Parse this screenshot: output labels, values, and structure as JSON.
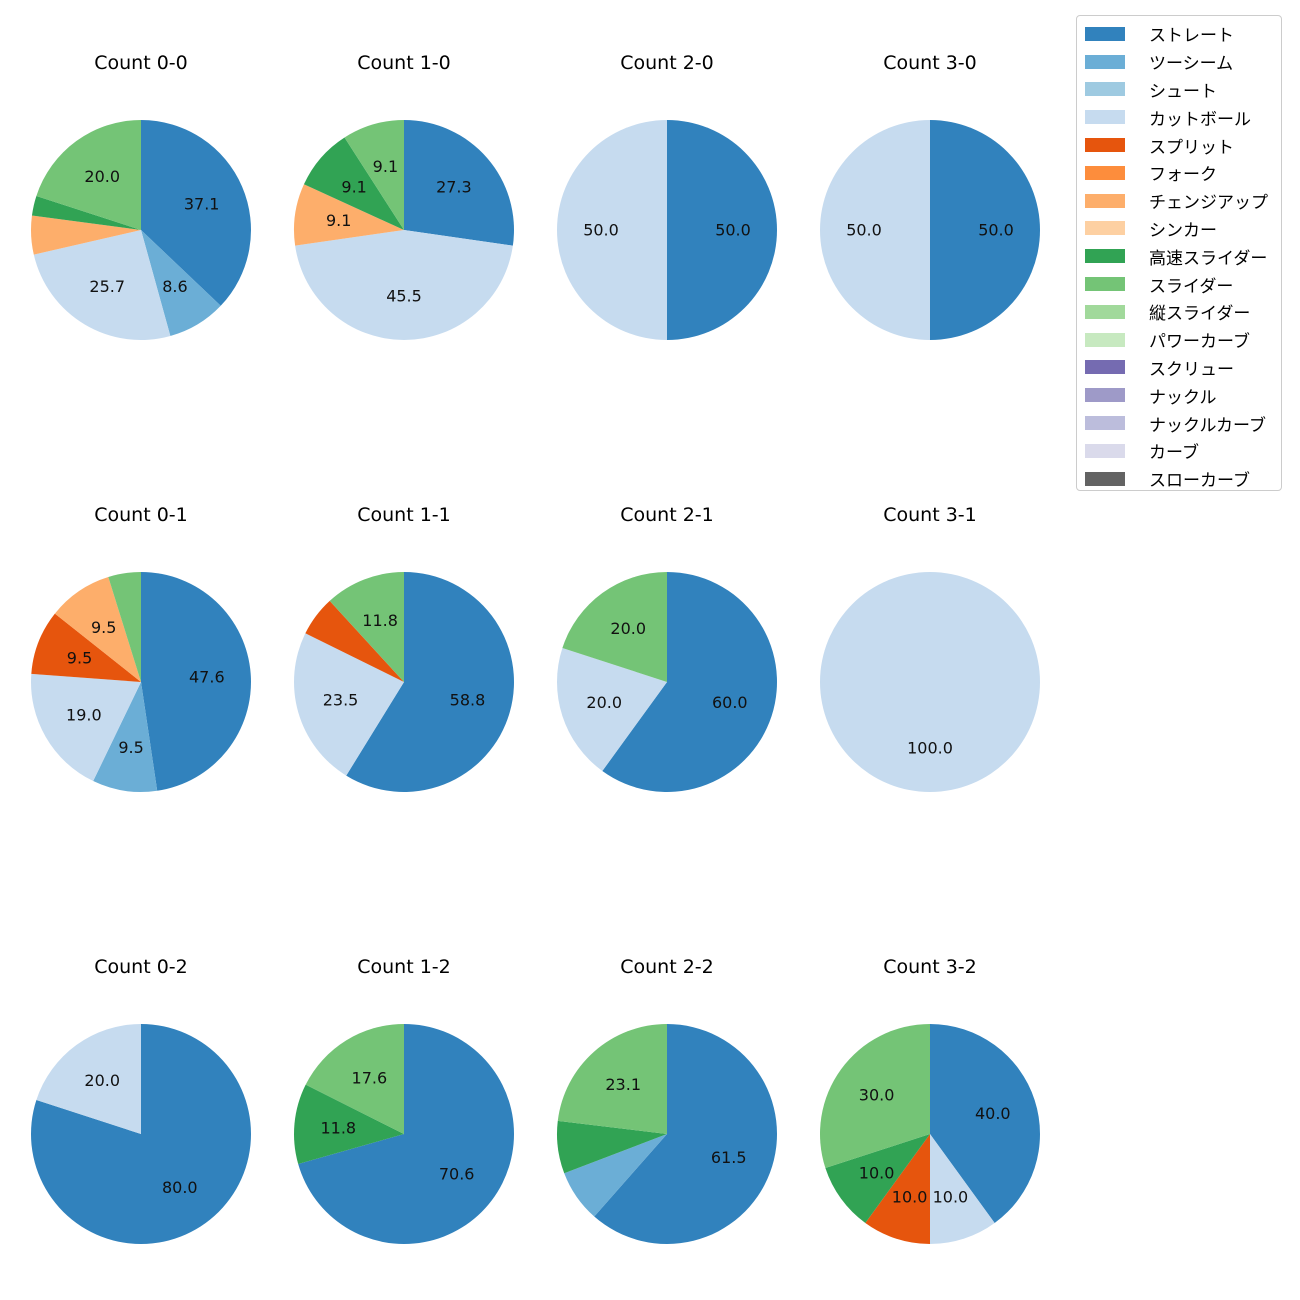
{
  "chart_data": {
    "type": "pie",
    "legend": {
      "placement": "top-right",
      "entries": [
        {
          "name": "ストレート",
          "color": "#3182bd"
        },
        {
          "name": "ツーシーム",
          "color": "#6baed6"
        },
        {
          "name": "シュート",
          "color": "#9ecae1"
        },
        {
          "name": "カットボール",
          "color": "#c6dbef"
        },
        {
          "name": "スプリット",
          "color": "#e6550d"
        },
        {
          "name": "フォーク",
          "color": "#fd8d3c"
        },
        {
          "name": "チェンジアップ",
          "color": "#fdae6b"
        },
        {
          "name": "シンカー",
          "color": "#fdd0a2"
        },
        {
          "name": "高速スライダー",
          "color": "#31a354"
        },
        {
          "name": "スライダー",
          "color": "#74c476"
        },
        {
          "name": "縦スライダー",
          "color": "#a1d99b"
        },
        {
          "name": "パワーカーブ",
          "color": "#c7e9c0"
        },
        {
          "name": "スクリュー",
          "color": "#756bb1"
        },
        {
          "name": "ナックル",
          "color": "#9e9ac8"
        },
        {
          "name": "ナックルカーブ",
          "color": "#bcbddc"
        },
        {
          "name": "カーブ",
          "color": "#dadaeb"
        },
        {
          "name": "スローカーブ",
          "color": "#636363"
        }
      ]
    },
    "pies": [
      {
        "title": "Count 0-0",
        "slices": [
          {
            "pitch": "ストレート",
            "value": 37.1,
            "label": "37.1"
          },
          {
            "pitch": "ツーシーム",
            "value": 8.6,
            "label": "8.6"
          },
          {
            "pitch": "カットボール",
            "value": 25.7,
            "label": "25.7"
          },
          {
            "pitch": "チェンジアップ",
            "value": 5.7,
            "label": ""
          },
          {
            "pitch": "高速スライダー",
            "value": 2.9,
            "label": ""
          },
          {
            "pitch": "スライダー",
            "value": 20.0,
            "label": "20.0"
          }
        ]
      },
      {
        "title": "Count 1-0",
        "slices": [
          {
            "pitch": "ストレート",
            "value": 27.3,
            "label": "27.3"
          },
          {
            "pitch": "カットボール",
            "value": 45.5,
            "label": "45.5"
          },
          {
            "pitch": "チェンジアップ",
            "value": 9.1,
            "label": "9.1"
          },
          {
            "pitch": "高速スライダー",
            "value": 9.1,
            "label": "9.1"
          },
          {
            "pitch": "スライダー",
            "value": 9.1,
            "label": "9.1"
          }
        ]
      },
      {
        "title": "Count 2-0",
        "slices": [
          {
            "pitch": "ストレート",
            "value": 50.0,
            "label": "50.0"
          },
          {
            "pitch": "カットボール",
            "value": 50.0,
            "label": "50.0"
          }
        ]
      },
      {
        "title": "Count 3-0",
        "slices": [
          {
            "pitch": "ストレート",
            "value": 50.0,
            "label": "50.0"
          },
          {
            "pitch": "カットボール",
            "value": 50.0,
            "label": "50.0"
          }
        ]
      },
      {
        "title": "Count 0-1",
        "slices": [
          {
            "pitch": "ストレート",
            "value": 47.6,
            "label": "47.6"
          },
          {
            "pitch": "ツーシーム",
            "value": 9.5,
            "label": "9.5"
          },
          {
            "pitch": "カットボール",
            "value": 19.0,
            "label": "19.0"
          },
          {
            "pitch": "スプリット",
            "value": 9.5,
            "label": "9.5"
          },
          {
            "pitch": "チェンジアップ",
            "value": 9.5,
            "label": "9.5"
          },
          {
            "pitch": "スライダー",
            "value": 4.8,
            "label": ""
          }
        ]
      },
      {
        "title": "Count 1-1",
        "slices": [
          {
            "pitch": "ストレート",
            "value": 58.8,
            "label": "58.8"
          },
          {
            "pitch": "カットボール",
            "value": 23.5,
            "label": "23.5"
          },
          {
            "pitch": "スプリット",
            "value": 5.9,
            "label": ""
          },
          {
            "pitch": "スライダー",
            "value": 11.8,
            "label": "11.8"
          }
        ]
      },
      {
        "title": "Count 2-1",
        "slices": [
          {
            "pitch": "ストレート",
            "value": 60.0,
            "label": "60.0"
          },
          {
            "pitch": "カットボール",
            "value": 20.0,
            "label": "20.0"
          },
          {
            "pitch": "スライダー",
            "value": 20.0,
            "label": "20.0"
          }
        ]
      },
      {
        "title": "Count 3-1",
        "slices": [
          {
            "pitch": "カットボール",
            "value": 100.0,
            "label": "100.0"
          }
        ]
      },
      {
        "title": "Count 0-2",
        "slices": [
          {
            "pitch": "ストレート",
            "value": 80.0,
            "label": "80.0"
          },
          {
            "pitch": "カットボール",
            "value": 20.0,
            "label": "20.0"
          }
        ]
      },
      {
        "title": "Count 1-2",
        "slices": [
          {
            "pitch": "ストレート",
            "value": 70.6,
            "label": "70.6"
          },
          {
            "pitch": "高速スライダー",
            "value": 11.8,
            "label": "11.8"
          },
          {
            "pitch": "スライダー",
            "value": 17.6,
            "label": "17.6"
          }
        ]
      },
      {
        "title": "Count 2-2",
        "slices": [
          {
            "pitch": "ストレート",
            "value": 61.5,
            "label": "61.5"
          },
          {
            "pitch": "ツーシーム",
            "value": 7.7,
            "label": ""
          },
          {
            "pitch": "高速スライダー",
            "value": 7.7,
            "label": ""
          },
          {
            "pitch": "スライダー",
            "value": 23.1,
            "label": "23.1"
          }
        ]
      },
      {
        "title": "Count 3-2",
        "slices": [
          {
            "pitch": "ストレート",
            "value": 40.0,
            "label": "40.0"
          },
          {
            "pitch": "カットボール",
            "value": 10.0,
            "label": "10.0"
          },
          {
            "pitch": "スプリット",
            "value": 10.0,
            "label": "10.0"
          },
          {
            "pitch": "高速スライダー",
            "value": 10.0,
            "label": "10.0"
          },
          {
            "pitch": "スライダー",
            "value": 30.0,
            "label": "30.0"
          }
        ]
      }
    ]
  }
}
